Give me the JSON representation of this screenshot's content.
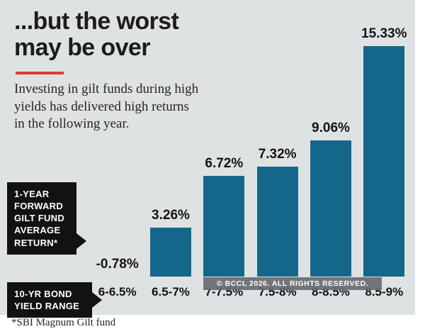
{
  "header": {
    "title_line1": "...but the worst",
    "title_line2": "may be over",
    "subtitle_lines": [
      "Investing in gilt funds during high",
      "yields has delivered high returns",
      "in the following year."
    ]
  },
  "chart_data": {
    "type": "bar",
    "categories": [
      "6-6.5%",
      "6.5-7%",
      "7-7.5%",
      "7.5-8%",
      "8-8.5%",
      "8.5-9%"
    ],
    "values": [
      -0.78,
      3.26,
      6.72,
      7.32,
      9.06,
      15.33
    ],
    "value_labels": [
      "-0.78%",
      "3.26%",
      "6.72%",
      "7.32%",
      "9.06%",
      "15.33%"
    ],
    "title": "...but the worst may be over",
    "xlabel": "10-YR BOND YIELD RANGE",
    "ylabel": "1-YEAR FORWARD GILT FUND AVERAGE RETURN*",
    "ylim": [
      -1,
      16
    ],
    "grid": false,
    "legend_position": "none",
    "bar_color": "#14678b"
  },
  "labels": {
    "series_box_lines": [
      "1-YEAR",
      "FORWARD",
      "GILT FUND",
      "AVERAGE",
      "RETURN*"
    ],
    "axis_box_lines": [
      "10-YR BOND",
      "YIELD RANGE"
    ]
  },
  "footer": {
    "footnote": "*SBI Magnum Gilt fund",
    "copyright": "© BCCL 2026. ALL RIGHTS RESERVED."
  },
  "colors": {
    "background": "#dfe2e3",
    "bar": "#14678b",
    "accent_red": "#e23b2e",
    "label_box": "#121212",
    "text": "#141414"
  }
}
